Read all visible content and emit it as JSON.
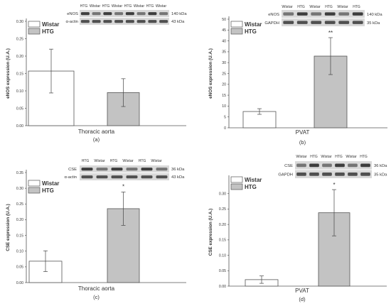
{
  "legend": {
    "control": "Wistar",
    "treated": "HTG"
  },
  "colors": {
    "control": "#ffffff",
    "treated": "#c3c3c3",
    "edge": "#555555"
  },
  "chart_data": [
    {
      "type": "bar",
      "panel": "(a)",
      "xlabel": "Thoracic aorta",
      "ylabel": "eNOS expression (U.A.)",
      "ylim": [
        0,
        0.3
      ],
      "yticks": [
        "0.00",
        "0.05",
        "0.10",
        "0.15",
        "0.20",
        "0.25",
        "0.30"
      ],
      "categories": [
        "Wistar",
        "HTG"
      ],
      "values": [
        0.157,
        0.095
      ],
      "errors": [
        0.063,
        0.04
      ],
      "significance": [
        "",
        ""
      ],
      "blot": {
        "lanes": [
          "HTG",
          "Wistar",
          "HTG",
          "Wistar",
          "HTG",
          "Wistar",
          "HTG",
          "Wistar"
        ],
        "rows": [
          {
            "protein": "eNOS",
            "size": "140 kDa"
          },
          {
            "protein": "α-actin",
            "size": "43 kDa"
          }
        ]
      }
    },
    {
      "type": "bar",
      "panel": "(b)",
      "xlabel": "PVAT",
      "ylabel": "eNOS expression (U.A.)",
      "ylim": [
        0,
        50
      ],
      "yticks": [
        "0",
        "5",
        "10",
        "15",
        "20",
        "25",
        "30",
        "35",
        "40",
        "45",
        "50"
      ],
      "categories": [
        "Wistar",
        "HTG"
      ],
      "values": [
        7.5,
        33
      ],
      "errors": [
        1.3,
        8.5
      ],
      "significance": [
        "",
        "**"
      ],
      "blot": {
        "lanes": [
          "Wistar",
          "HTG",
          "Wistar",
          "HTG",
          "Wistar",
          "HTG"
        ],
        "rows": [
          {
            "protein": "eNOS",
            "size": "140 kDa"
          },
          {
            "protein": "GAPDH",
            "size": "35 kDa"
          }
        ]
      }
    },
    {
      "type": "bar",
      "panel": "(c)",
      "xlabel": "Thoracic aorta",
      "ylabel": "CSE expression (U.A.)",
      "ylim": [
        0,
        0.35
      ],
      "yticks": [
        "0.00",
        "0.05",
        "0.10",
        "0.15",
        "0.20",
        "0.25",
        "0.30",
        "0.35"
      ],
      "categories": [
        "Wistar",
        "HTG"
      ],
      "values": [
        0.068,
        0.235
      ],
      "errors": [
        0.033,
        0.053
      ],
      "significance": [
        "",
        "*"
      ],
      "blot": {
        "lanes": [
          "HTG",
          "Wistar",
          "HTG",
          "Wistar",
          "HTG",
          "Wistar"
        ],
        "rows": [
          {
            "protein": "CSE",
            "size": "36 kDa"
          },
          {
            "protein": "α-actin",
            "size": "43 kDa"
          }
        ]
      }
    },
    {
      "type": "bar",
      "panel": "(d)",
      "xlabel": "PVAT",
      "ylabel": "CSE expression (U.A.)",
      "ylim": [
        0,
        0.35
      ],
      "yticks": [
        "0.00",
        "0.05",
        "0.10",
        "0.15",
        "0.20",
        "0.25",
        "0.30"
      ],
      "categories": [
        "Wistar",
        "HTG"
      ],
      "values": [
        0.021,
        0.238
      ],
      "errors": [
        0.012,
        0.075
      ],
      "significance": [
        "",
        "*"
      ],
      "blot": {
        "lanes": [
          "Wistar",
          "HTG",
          "Wistar",
          "HTG",
          "Wistar",
          "HTG"
        ],
        "rows": [
          {
            "protein": "CSE",
            "size": "36 kDa"
          },
          {
            "protein": "GAPDH",
            "size": "35 kDa"
          }
        ]
      }
    }
  ]
}
